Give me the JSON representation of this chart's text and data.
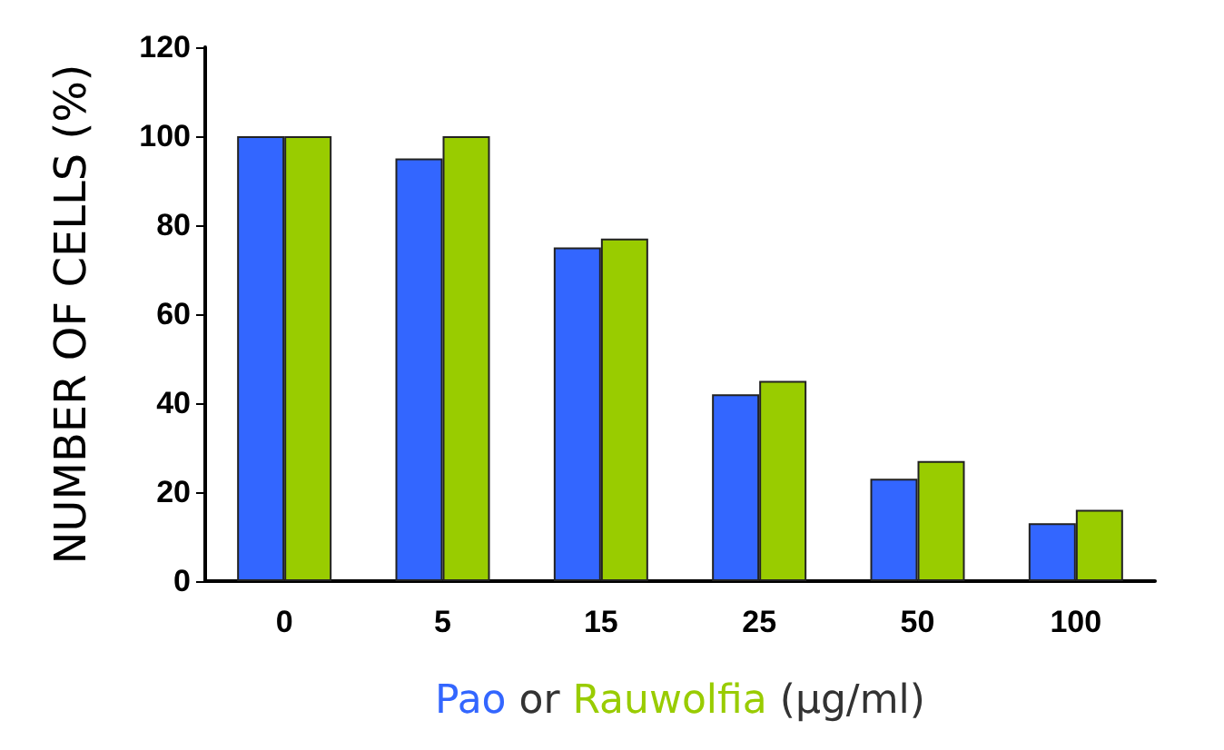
{
  "chart_data": {
    "type": "bar",
    "xlabel": "Pao or Rauwolfia (µg/ml)",
    "ylabel": "NUMBER OF CELLS (%)",
    "categories": [
      "0",
      "5",
      "15",
      "25",
      "50",
      "100"
    ],
    "series": [
      {
        "color": "#3366ff",
        "values": [
          100,
          95,
          75,
          42,
          23,
          13
        ]
      },
      {
        "color": "#99cc00",
        "values": [
          100,
          100,
          77,
          45,
          27,
          16
        ]
      }
    ],
    "ylim": [
      0,
      120
    ],
    "yticks": [
      0,
      20,
      40,
      60,
      80,
      100,
      120
    ],
    "grid": false
  }
}
